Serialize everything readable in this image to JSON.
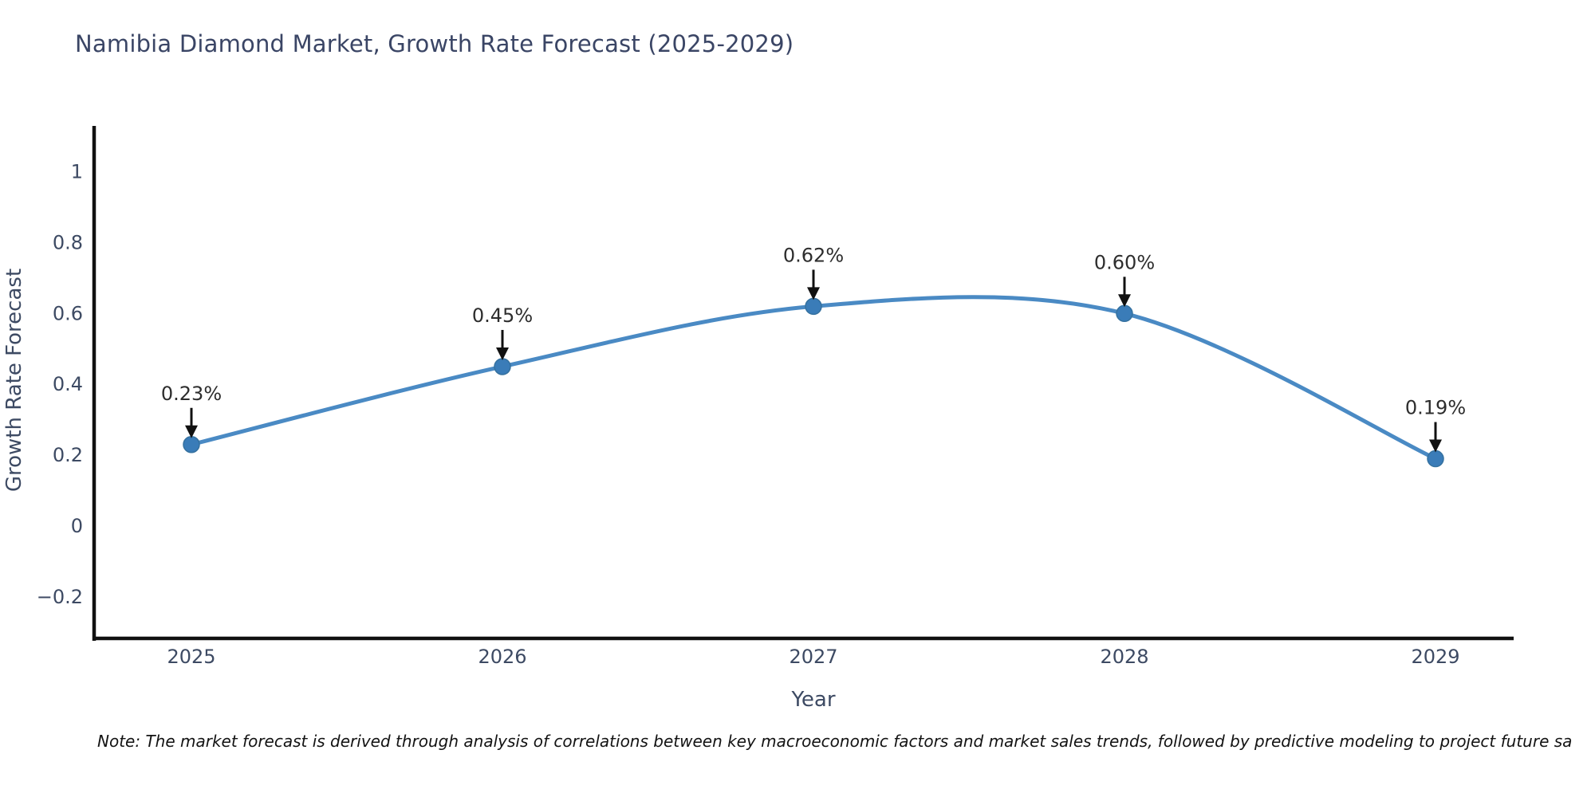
{
  "title": "Namibia Diamond Market, Growth Rate Forecast (2025-2029)",
  "note": "Note: The market forecast is derived through analysis of correlations between key macroeconomic factors and market sales trends, followed by predictive modeling to project future sa",
  "chart_data": {
    "type": "line",
    "x": [
      "2025",
      "2026",
      "2027",
      "2028",
      "2029"
    ],
    "values": [
      0.23,
      0.45,
      0.62,
      0.6,
      0.19
    ],
    "point_labels": [
      "0.23%",
      "0.45%",
      "0.62%",
      "0.60%",
      "0.19%"
    ],
    "title": "Namibia Diamond Market, Growth Rate Forecast (2025-2029)",
    "xlabel": "Year",
    "ylabel": "Growth Rate Forecast",
    "yticks": [
      1,
      0.8,
      0.6,
      0.4,
      0.2,
      0,
      -0.2
    ],
    "ytick_labels": [
      "1",
      "0.8",
      "0.6",
      "0.4",
      "0.2",
      "0",
      "−0.2"
    ],
    "ylim": [
      -0.32,
      1.12
    ],
    "grid": false,
    "legend": "none",
    "line_shape": "smooth-spline",
    "colors": {
      "line": "#4a8ac4",
      "marker": "#3a7cb8",
      "marker_edge": "#35719f",
      "axis_spine": "#111111",
      "tick_text": "#3d4a63",
      "annotation_text": "#2d2d2d",
      "annotation_arrow": "#111111",
      "title_text": "#3a4565"
    }
  }
}
